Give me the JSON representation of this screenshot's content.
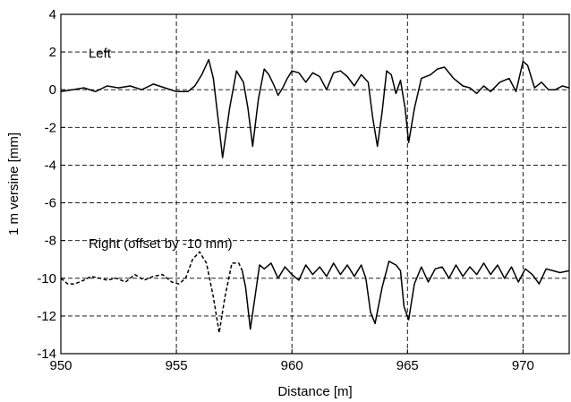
{
  "chart_data": {
    "type": "line",
    "title": "",
    "xlabel": "Distance [m]",
    "ylabel": "1 m versine [mm]",
    "xlim": [
      950,
      972
    ],
    "ylim": [
      -14,
      4
    ],
    "xticks": [
      950,
      955,
      960,
      965,
      970
    ],
    "xtick_labels": [
      "950",
      "955",
      "960",
      "965",
      "970"
    ],
    "yticks": [
      4,
      2,
      0,
      -2,
      -4,
      -6,
      -8,
      -10,
      -12,
      -14
    ],
    "ytick_labels": [
      "4",
      "2",
      "0",
      "-2",
      "-4",
      "-6",
      "-8",
      "-10",
      "-12",
      "-14"
    ],
    "grid": true,
    "annotations": [
      {
        "text": "Left",
        "x": 951.2,
        "y": 1.7
      },
      {
        "text": "Right (offset by -10 mm)",
        "x": 951.2,
        "y": -8.4
      }
    ],
    "series": [
      {
        "style": "solid",
        "points": [
          [
            950.0,
            -0.1
          ],
          [
            950.5,
            0.0
          ],
          [
            951.0,
            0.1
          ],
          [
            951.5,
            -0.1
          ],
          [
            952.0,
            0.2
          ],
          [
            952.5,
            0.1
          ],
          [
            953.0,
            0.2
          ],
          [
            953.5,
            0.0
          ],
          [
            954.0,
            0.3
          ],
          [
            954.5,
            0.1
          ],
          [
            955.0,
            -0.1
          ],
          [
            955.5,
            -0.1
          ],
          [
            955.8,
            0.2
          ],
          [
            956.1,
            0.8
          ],
          [
            956.4,
            1.6
          ],
          [
            956.6,
            0.6
          ],
          [
            956.8,
            -1.5
          ],
          [
            957.0,
            -3.6
          ],
          [
            957.3,
            -1.0
          ],
          [
            957.6,
            1.0
          ],
          [
            957.9,
            0.4
          ],
          [
            958.1,
            -1.0
          ],
          [
            958.3,
            -3.0
          ],
          [
            958.55,
            -0.5
          ],
          [
            958.8,
            1.1
          ],
          [
            959.0,
            0.8
          ],
          [
            959.2,
            0.3
          ],
          [
            959.4,
            -0.3
          ],
          [
            959.6,
            0.1
          ],
          [
            959.8,
            0.6
          ],
          [
            960.0,
            1.0
          ],
          [
            960.3,
            0.9
          ],
          [
            960.6,
            0.4
          ],
          [
            960.9,
            0.9
          ],
          [
            961.2,
            0.7
          ],
          [
            961.5,
            0.0
          ],
          [
            961.8,
            0.9
          ],
          [
            962.1,
            1.0
          ],
          [
            962.4,
            0.7
          ],
          [
            962.7,
            0.2
          ],
          [
            963.0,
            0.8
          ],
          [
            963.3,
            0.4
          ],
          [
            963.5,
            -1.5
          ],
          [
            963.7,
            -3.0
          ],
          [
            963.9,
            -1.2
          ],
          [
            964.1,
            1.0
          ],
          [
            964.3,
            0.8
          ],
          [
            964.5,
            -0.2
          ],
          [
            964.7,
            0.5
          ],
          [
            964.9,
            -1.0
          ],
          [
            965.05,
            -2.8
          ],
          [
            965.3,
            -1.0
          ],
          [
            965.6,
            0.6
          ],
          [
            966.0,
            0.8
          ],
          [
            966.3,
            1.1
          ],
          [
            966.6,
            1.2
          ],
          [
            967.0,
            0.6
          ],
          [
            967.4,
            0.2
          ],
          [
            967.7,
            0.1
          ],
          [
            968.0,
            -0.2
          ],
          [
            968.3,
            0.2
          ],
          [
            968.6,
            -0.1
          ],
          [
            969.0,
            0.4
          ],
          [
            969.4,
            0.6
          ],
          [
            969.7,
            -0.1
          ],
          [
            970.0,
            1.5
          ],
          [
            970.2,
            1.3
          ],
          [
            970.5,
            0.1
          ],
          [
            970.8,
            0.4
          ],
          [
            971.1,
            0.0
          ],
          [
            971.4,
            0.0
          ],
          [
            971.7,
            0.2
          ],
          [
            972.0,
            0.1
          ]
        ]
      },
      {
        "style": "dashed",
        "points": [
          [
            950.0,
            -10.0
          ],
          [
            950.3,
            -10.3
          ],
          [
            950.6,
            -10.3
          ],
          [
            951.0,
            -10.1
          ],
          [
            951.3,
            -9.9
          ],
          [
            951.7,
            -10.0
          ],
          [
            952.0,
            -10.1
          ],
          [
            952.4,
            -10.0
          ],
          [
            952.8,
            -10.2
          ],
          [
            953.2,
            -9.8
          ],
          [
            953.6,
            -10.1
          ],
          [
            954.0,
            -9.9
          ],
          [
            954.4,
            -9.8
          ],
          [
            954.8,
            -10.2
          ],
          [
            955.1,
            -10.3
          ],
          [
            955.4,
            -10.0
          ],
          [
            955.7,
            -9.0
          ],
          [
            956.0,
            -8.6
          ],
          [
            956.3,
            -9.2
          ],
          [
            956.6,
            -11.0
          ],
          [
            956.85,
            -12.9
          ],
          [
            957.1,
            -11.0
          ],
          [
            957.4,
            -9.2
          ],
          [
            957.7,
            -9.2
          ],
          [
            957.85,
            -9.6
          ]
        ]
      },
      {
        "style": "solid",
        "points": [
          [
            957.85,
            -9.6
          ],
          [
            958.0,
            -10.5
          ],
          [
            958.2,
            -12.7
          ],
          [
            958.4,
            -11.0
          ],
          [
            958.6,
            -9.3
          ],
          [
            958.8,
            -9.5
          ],
          [
            959.1,
            -9.2
          ],
          [
            959.4,
            -10.0
          ],
          [
            959.7,
            -9.4
          ],
          [
            960.0,
            -9.8
          ],
          [
            960.3,
            -10.1
          ],
          [
            960.6,
            -9.3
          ],
          [
            960.9,
            -9.8
          ],
          [
            961.2,
            -9.4
          ],
          [
            961.5,
            -9.9
          ],
          [
            961.8,
            -9.2
          ],
          [
            962.1,
            -9.8
          ],
          [
            962.4,
            -9.3
          ],
          [
            962.7,
            -9.9
          ],
          [
            963.0,
            -9.3
          ],
          [
            963.2,
            -10.0
          ],
          [
            963.4,
            -11.8
          ],
          [
            963.6,
            -12.4
          ],
          [
            963.9,
            -10.5
          ],
          [
            964.2,
            -9.1
          ],
          [
            964.5,
            -9.3
          ],
          [
            964.7,
            -9.6
          ],
          [
            964.85,
            -11.5
          ],
          [
            965.05,
            -12.2
          ],
          [
            965.3,
            -10.3
          ],
          [
            965.6,
            -9.4
          ],
          [
            965.9,
            -10.2
          ],
          [
            966.2,
            -9.5
          ],
          [
            966.5,
            -9.4
          ],
          [
            966.8,
            -10.0
          ],
          [
            967.1,
            -9.3
          ],
          [
            967.4,
            -9.9
          ],
          [
            967.7,
            -9.4
          ],
          [
            968.0,
            -9.8
          ],
          [
            968.3,
            -9.2
          ],
          [
            968.6,
            -9.8
          ],
          [
            968.9,
            -9.3
          ],
          [
            969.2,
            -10.0
          ],
          [
            969.5,
            -9.4
          ],
          [
            969.8,
            -10.2
          ],
          [
            970.1,
            -9.5
          ],
          [
            970.4,
            -9.8
          ],
          [
            970.7,
            -10.3
          ],
          [
            971.0,
            -9.5
          ],
          [
            971.3,
            -9.6
          ],
          [
            971.6,
            -9.7
          ],
          [
            972.0,
            -9.6
          ]
        ]
      }
    ]
  }
}
